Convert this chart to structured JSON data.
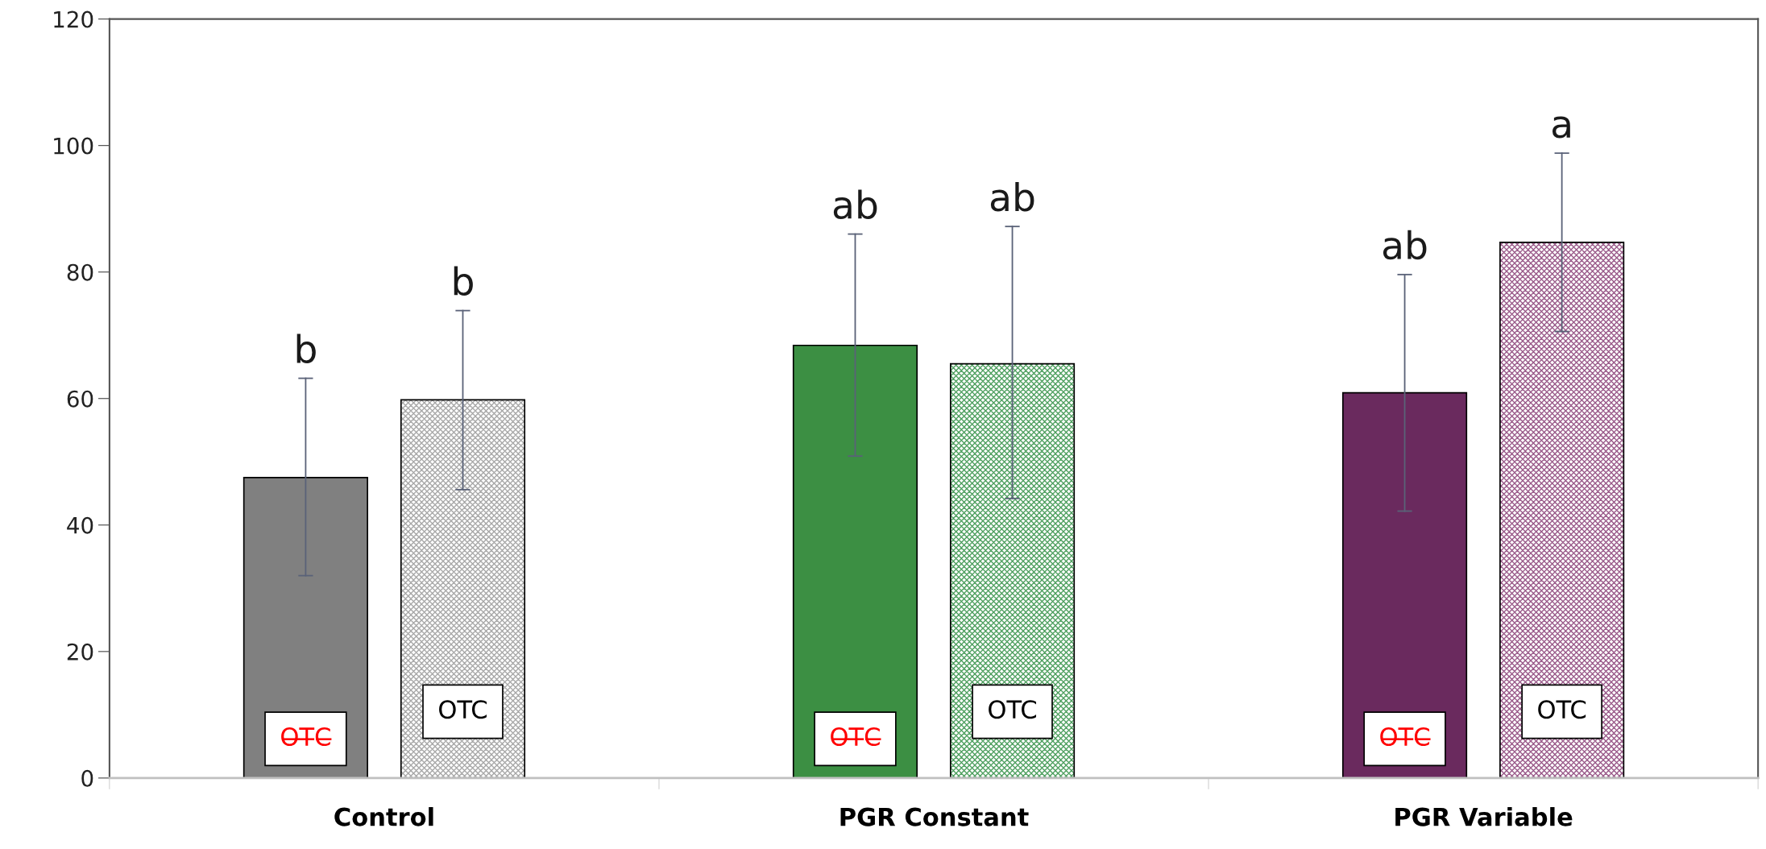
{
  "chart_data": {
    "type": "bar",
    "categories": [
      "Control",
      "PGR Constant",
      "PGR Variable"
    ],
    "series": [
      {
        "name": "O̶T̶C̶",
        "colors": [
          "#808080",
          "#3c8f43",
          "#6a2a5e"
        ],
        "values": [
          47.5,
          68.4,
          60.9
        ],
        "errors": [
          [
            32.0,
            63.2
          ],
          [
            50.9,
            86.0
          ],
          [
            42.2,
            79.6
          ]
        ]
      },
      {
        "name": "OTC",
        "colors": [
          "#a8a8a8",
          "#4fa060",
          "#9a5a8a"
        ],
        "values": [
          59.8,
          65.5,
          84.7
        ],
        "errors": [
          [
            45.6,
            73.9
          ],
          [
            44.2,
            87.2
          ],
          [
            70.6,
            98.8
          ]
        ]
      }
    ],
    "annotations": [
      "b",
      "ab",
      "ab",
      "b",
      "ab",
      "a"
    ],
    "ylim": [
      0,
      120
    ],
    "yticks": [
      0,
      20,
      40,
      60,
      80,
      100,
      120
    ],
    "grid": false,
    "legend": false
  }
}
